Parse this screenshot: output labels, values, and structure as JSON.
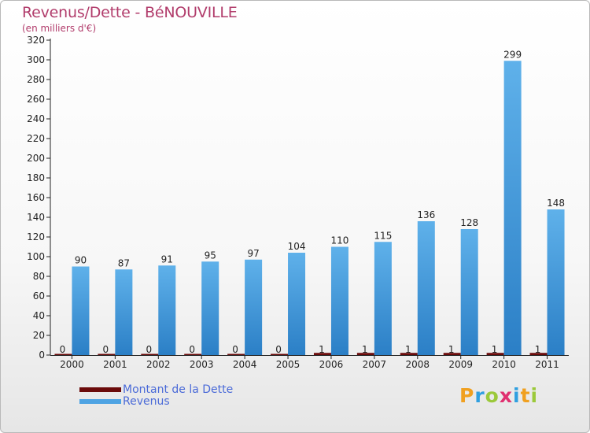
{
  "title": "Revenus/Dette - BéNOUVILLE",
  "subtitle": "(en milliers d'€)",
  "chart_data": {
    "type": "bar",
    "categories": [
      "2000",
      "2001",
      "2002",
      "2003",
      "2004",
      "2005",
      "2006",
      "2007",
      "2008",
      "2009",
      "2010",
      "2011"
    ],
    "series": [
      {
        "name": "Montant de la Dette",
        "color": "#6b0b0b",
        "values": [
          0,
          0,
          0,
          0,
          0,
          0,
          1,
          1,
          1,
          1,
          1,
          1
        ]
      },
      {
        "name": "Revenus",
        "color": "#4ea3e3",
        "values": [
          90,
          87,
          91,
          95,
          97,
          104,
          110,
          115,
          136,
          128,
          299,
          148
        ]
      }
    ],
    "ylim": [
      0,
      320
    ],
    "yticks": [
      0,
      20,
      40,
      60,
      80,
      100,
      120,
      140,
      160,
      180,
      200,
      220,
      240,
      260,
      280,
      300,
      320
    ],
    "grid": false,
    "legend_position": "bottom-left"
  },
  "legend": [
    {
      "label": "Montant de la Dette",
      "color": "#6b0b0b"
    },
    {
      "label": "Revenus",
      "color": "#4ea3e3"
    }
  ],
  "logo": {
    "letters": [
      "P",
      "r",
      "o",
      "x",
      "i",
      "t",
      "i"
    ],
    "colors": [
      "#f0a020",
      "#2f9fe0",
      "#9bc93a",
      "#e03070",
      "#2f9fe0",
      "#f0a020",
      "#9bc93a"
    ]
  }
}
